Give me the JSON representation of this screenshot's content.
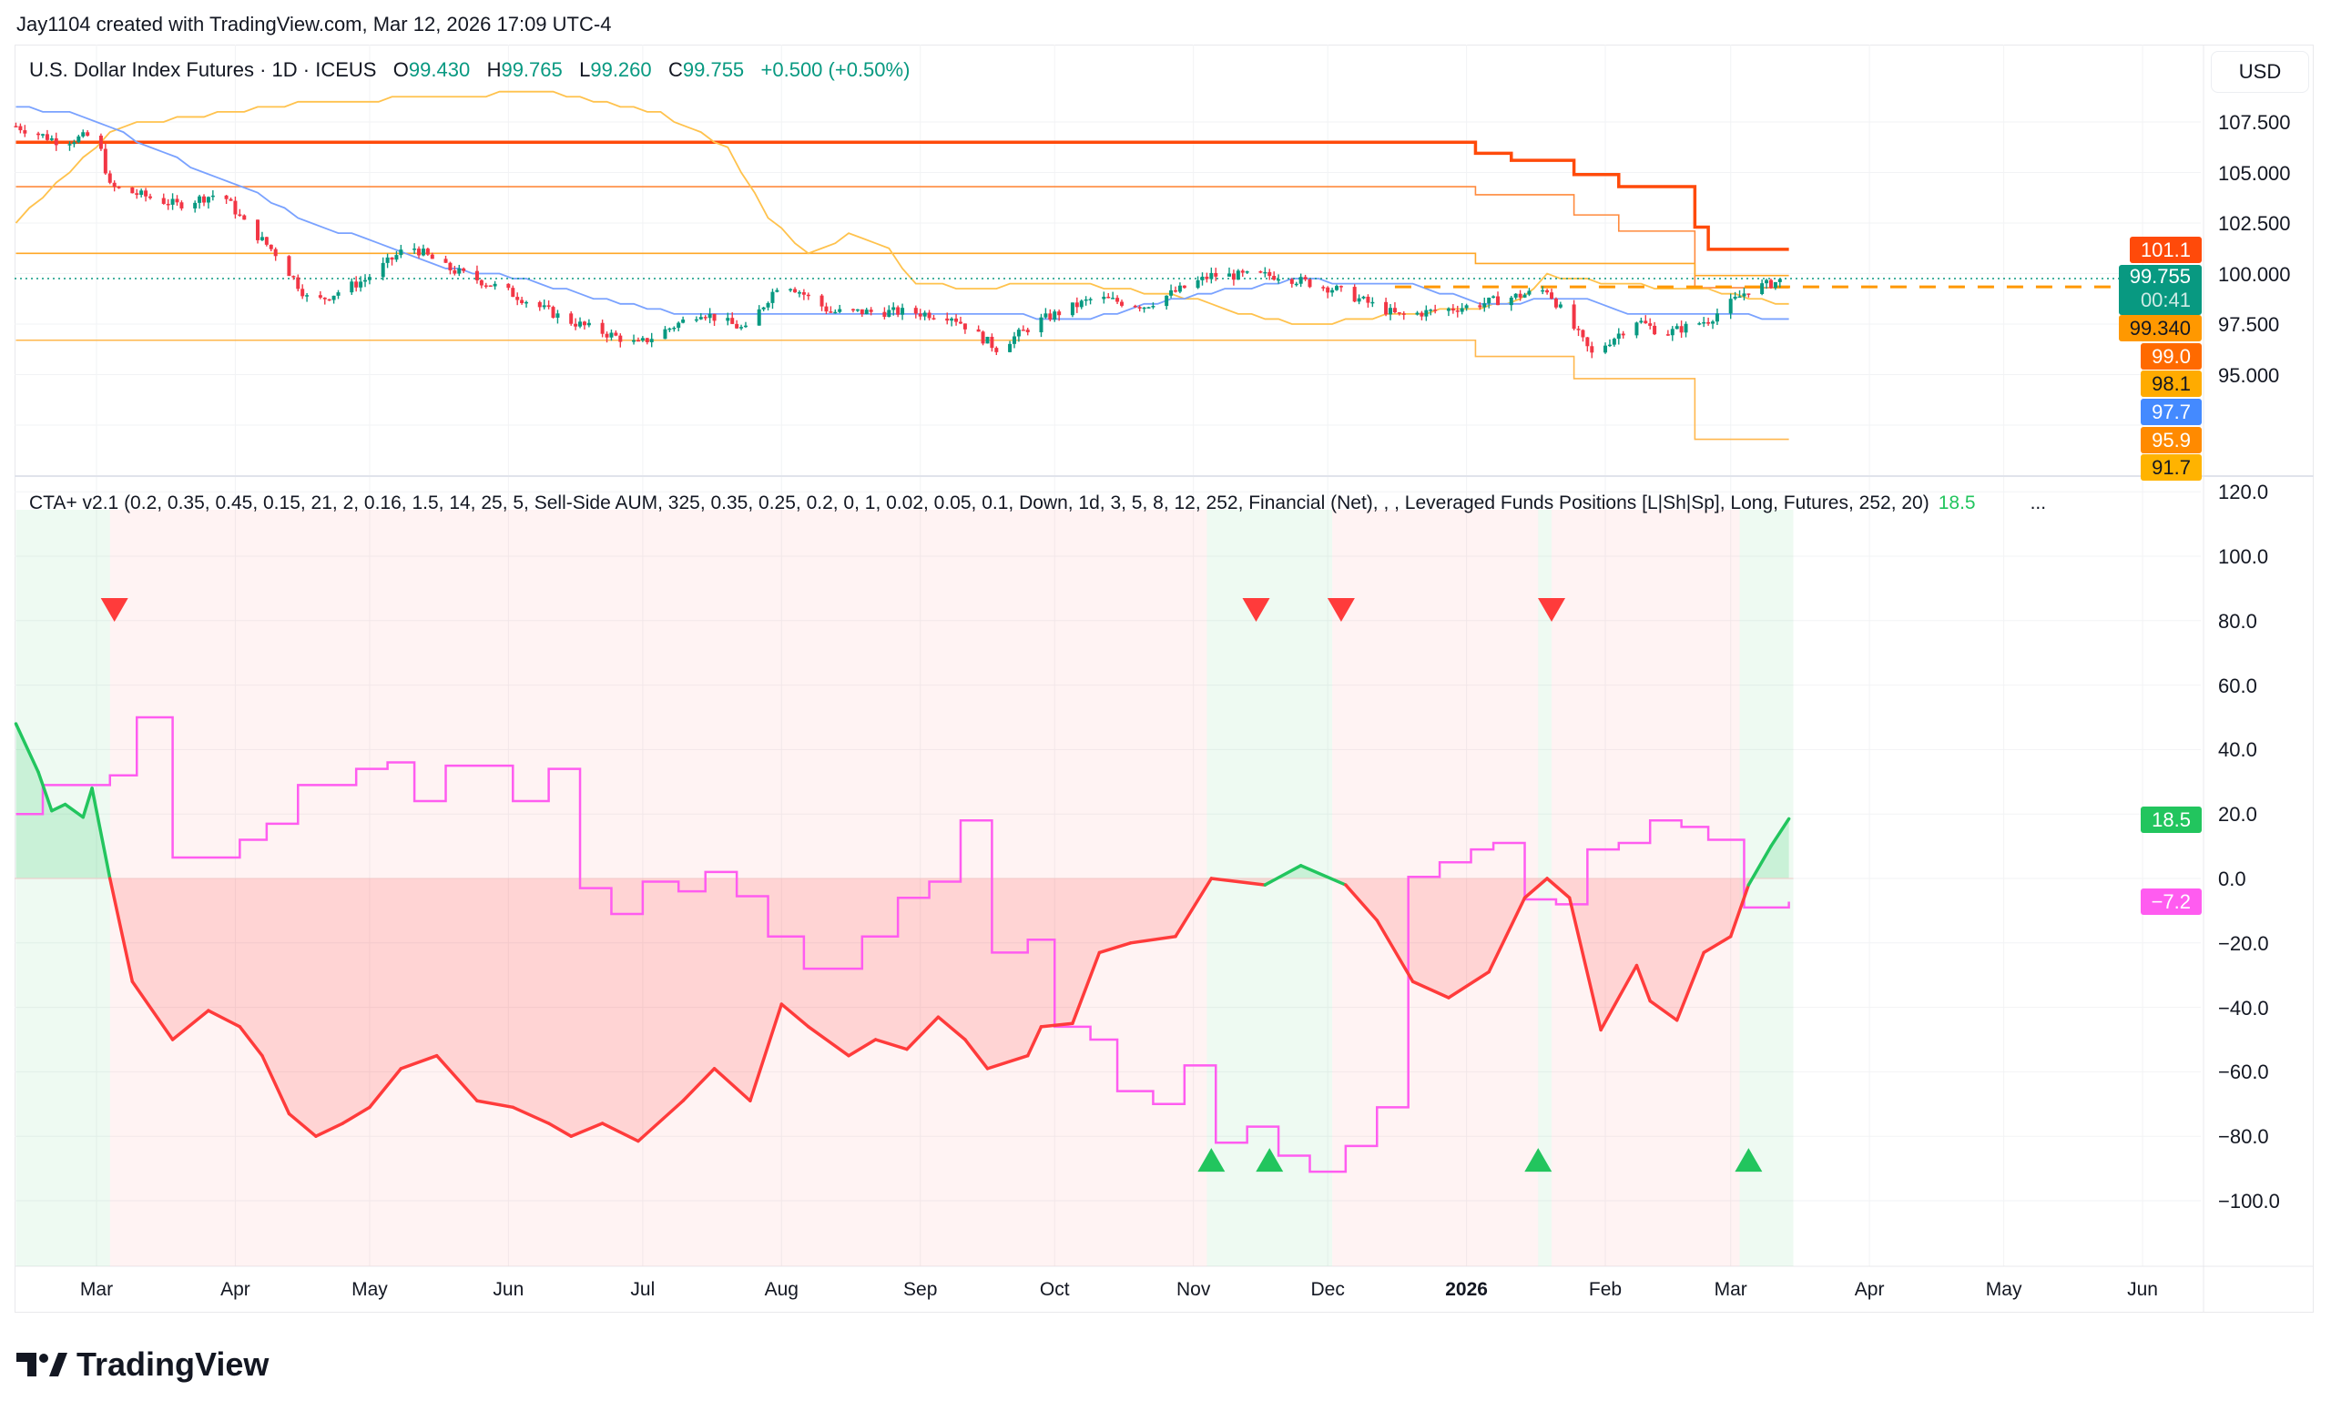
{
  "header": {
    "credit": "Jay1104 created with TradingView.com, Mar 12, 2026 17:09 UTC-4"
  },
  "symbol": {
    "name": "U.S. Dollar Index Futures · 1D · ICEUS",
    "o_label": "O",
    "o": "99.430",
    "h_label": "H",
    "h": "99.765",
    "l_label": "L",
    "l": "99.260",
    "c_label": "C",
    "c": "99.755",
    "change": "+0.500 (+0.50%)"
  },
  "indicator": {
    "legend": "CTA+ v2.1 (0.2, 0.35, 0.45, 0.15, 21, 2, 0.16, 1.5, 14, 25, 5, Sell-Side AUM, 325, 0.35, 0.25, 0.2, 0, 1, 0.02, 0.05, 0.1, Down, 1d, 3, 5, 8, 12, 252, Financial (Net), , , Leveraged Funds Positions [L|Sh|Sp], Long, Futures, 252, 20)",
    "value": "18.5",
    "more": "..."
  },
  "currency": "USD",
  "price_axis": [
    "107.500",
    "105.000",
    "102.500",
    "100.000",
    "97.500",
    "95.000"
  ],
  "price_labels": [
    {
      "text": "101.1",
      "bg": "#ff4a0a",
      "fg": "#ffffff"
    },
    {
      "text": "99.755",
      "sub": "00:41",
      "bg": "#089981",
      "fg": "#ffffff"
    },
    {
      "text": "99.340",
      "bg": "#ff9800",
      "fg": "#131722"
    },
    {
      "text": "99.0",
      "bg": "#ff6a00",
      "fg": "#ffffff"
    },
    {
      "text": "98.1",
      "bg": "#ffab00",
      "fg": "#131722"
    },
    {
      "text": "97.7",
      "bg": "#448aff",
      "fg": "#ffffff"
    },
    {
      "text": "95.9",
      "bg": "#ff8a00",
      "fg": "#ffffff"
    },
    {
      "text": "91.7",
      "bg": "#ffb300",
      "fg": "#131722"
    }
  ],
  "indicator_axis": [
    "120.0",
    "100.0",
    "80.0",
    "60.0",
    "40.0",
    "20.0",
    "0.0",
    "−20.0",
    "−40.0",
    "−60.0",
    "−80.0",
    "−100.0"
  ],
  "indicator_labels": [
    {
      "text": "18.5",
      "value": 18.5,
      "bg": "#22c55e"
    },
    {
      "text": "−7.2",
      "value": -7.2,
      "bg": "#ff5cf0"
    }
  ],
  "time_axis": [
    {
      "label": "Mar",
      "d": 0
    },
    {
      "label": "Apr",
      "d": 31
    },
    {
      "label": "May",
      "d": 61
    },
    {
      "label": "Jun",
      "d": 92
    },
    {
      "label": "Jul",
      "d": 122
    },
    {
      "label": "Aug",
      "d": 153
    },
    {
      "label": "Sep",
      "d": 184
    },
    {
      "label": "Oct",
      "d": 214
    },
    {
      "label": "Nov",
      "d": 245
    },
    {
      "label": "Dec",
      "d": 275
    },
    {
      "label": "2026",
      "d": 306,
      "bold": true
    },
    {
      "label": "Feb",
      "d": 337
    },
    {
      "label": "Mar",
      "d": 365
    },
    {
      "label": "Apr",
      "d": 396
    },
    {
      "label": "May",
      "d": 426
    },
    {
      "label": "Jun",
      "d": 457
    }
  ],
  "brand": "TradingView",
  "chart_data": [
    {
      "type": "candlestick",
      "title": "U.S. Dollar Index Futures · 1D · ICEUS",
      "x_unit": "days since 2025-03-01",
      "ylim": [
        90.5,
        110.5
      ],
      "last_price": 99.755,
      "closes": [
        [
          -18,
          107.3
        ],
        [
          -8,
          106.5
        ],
        [
          0,
          106.9
        ],
        [
          3,
          104.3
        ],
        [
          18,
          103.4
        ],
        [
          28,
          104.0
        ],
        [
          33,
          102.5
        ],
        [
          40,
          101.0
        ],
        [
          48,
          98.5
        ],
        [
          60,
          99.7
        ],
        [
          70,
          101.4
        ],
        [
          78,
          100.3
        ],
        [
          91,
          99.2
        ],
        [
          105,
          97.7
        ],
        [
          121,
          96.5
        ],
        [
          135,
          98.1
        ],
        [
          145,
          97.2
        ],
        [
          153,
          99.7
        ],
        [
          164,
          98.1
        ],
        [
          181,
          98.1
        ],
        [
          191,
          97.9
        ],
        [
          201,
          96.3
        ],
        [
          211,
          97.7
        ],
        [
          223,
          98.8
        ],
        [
          234,
          98.4
        ],
        [
          249,
          99.9
        ],
        [
          264,
          99.9
        ],
        [
          277,
          99.2
        ],
        [
          291,
          97.9
        ],
        [
          307,
          98.4
        ],
        [
          324,
          99.2
        ],
        [
          334,
          96.0
        ],
        [
          344,
          97.7
        ],
        [
          350,
          97.0
        ],
        [
          360,
          97.7
        ],
        [
          369,
          99.2
        ],
        [
          378,
          99.755
        ]
      ],
      "step_levels": [
        {
          "name": "level-red",
          "color": "#ff4a0a",
          "width": 3.5,
          "steps": [
            [
              -18,
              106.5
            ],
            [
              308,
              105.95
            ],
            [
              316,
              105.6
            ],
            [
              330,
              104.9
            ],
            [
              340,
              104.3
            ],
            [
              357,
              102.3
            ],
            [
              360,
              101.2
            ]
          ]
        },
        {
          "name": "level-orange-1",
          "color": "#ff8a3d",
          "width": 1.6,
          "steps": [
            [
              -18,
              104.3
            ],
            [
              308,
              103.9
            ],
            [
              330,
              102.9
            ],
            [
              340,
              102.1
            ],
            [
              357,
              99.3
            ]
          ]
        },
        {
          "name": "level-orange-2",
          "color": "#ffa726",
          "width": 1.6,
          "steps": [
            [
              -18,
              101.0
            ],
            [
              308,
              100.5
            ],
            [
              357,
              99.9
            ]
          ]
        },
        {
          "name": "level-orange-low",
          "color": "#ffb74d",
          "width": 1.6,
          "steps": [
            [
              -18,
              96.7
            ],
            [
              308,
              95.9
            ],
            [
              330,
              94.8
            ],
            [
              357,
              91.8
            ]
          ]
        }
      ],
      "lines": [
        {
          "name": "yellow-band",
          "color": "#ffc24d",
          "points": [
            [
              -18,
              102.5
            ],
            [
              5,
              107.3
            ],
            [
              45,
              108.4
            ],
            [
              101,
              109.0
            ],
            [
              125,
              108.0
            ],
            [
              141,
              106.2
            ],
            [
              151,
              102.5
            ],
            [
              159,
              101.0
            ],
            [
              168,
              101.9
            ],
            [
              176,
              101.4
            ],
            [
              183,
              99.6
            ],
            [
              194,
              99.2
            ],
            [
              211,
              99.6
            ],
            [
              231,
              99.2
            ],
            [
              244,
              98.8
            ],
            [
              261,
              97.7
            ],
            [
              271,
              97.5
            ],
            [
              297,
              98.1
            ],
            [
              317,
              98.5
            ],
            [
              324,
              99.9
            ],
            [
              344,
              99.4
            ],
            [
              360,
              99.2
            ],
            [
              378,
              98.5
            ]
          ]
        },
        {
          "name": "blue-average",
          "color": "#7aa2ff",
          "points": [
            [
              -18,
              108.2
            ],
            [
              -2,
              107.8
            ],
            [
              12,
              106.2
            ],
            [
              35,
              104.0
            ],
            [
              48,
              102.5
            ],
            [
              65,
              101.4
            ],
            [
              78,
              100.3
            ],
            [
              98,
              99.6
            ],
            [
              111,
              98.8
            ],
            [
              128,
              98.1
            ],
            [
              161,
              98.1
            ],
            [
              194,
              98.1
            ],
            [
              218,
              97.7
            ],
            [
              244,
              98.8
            ],
            [
              266,
              99.7
            ],
            [
              294,
              99.4
            ],
            [
              311,
              98.5
            ],
            [
              331,
              98.8
            ],
            [
              344,
              97.9
            ],
            [
              360,
              98.1
            ],
            [
              378,
              97.7
            ]
          ]
        }
      ],
      "dashed_level": {
        "value": 99.34,
        "color": "#ff9800"
      }
    },
    {
      "type": "line",
      "title": "CTA+ v2.1",
      "x_unit": "days since 2025-03-01",
      "ylim": [
        -120,
        125
      ],
      "zero_line": 0,
      "cta_line": [
        [
          -18,
          48
        ],
        [
          -13,
          33
        ],
        [
          -10,
          21
        ],
        [
          -7,
          23
        ],
        [
          -3,
          19
        ],
        [
          -1,
          28
        ],
        [
          3,
          0
        ],
        [
          8,
          -32
        ],
        [
          17,
          -50
        ],
        [
          25,
          -41
        ],
        [
          32,
          -46
        ],
        [
          37,
          -55
        ],
        [
          43,
          -73
        ],
        [
          49,
          -80
        ],
        [
          55,
          -76
        ],
        [
          61,
          -71
        ],
        [
          68,
          -59
        ],
        [
          76,
          -55
        ],
        [
          85,
          -69
        ],
        [
          93,
          -71
        ],
        [
          101,
          -76
        ],
        [
          106,
          -80
        ],
        [
          113,
          -76
        ],
        [
          121,
          -81.5
        ],
        [
          131,
          -69
        ],
        [
          138,
          -59
        ],
        [
          146,
          -69
        ],
        [
          153,
          -39
        ],
        [
          159,
          -46
        ],
        [
          168,
          -55
        ],
        [
          174,
          -50
        ],
        [
          181,
          -53
        ],
        [
          188,
          -43
        ],
        [
          194,
          -50
        ],
        [
          199,
          -59
        ],
        [
          208,
          -55
        ],
        [
          211,
          -46
        ],
        [
          218,
          -45
        ],
        [
          224,
          -23
        ],
        [
          231,
          -20
        ],
        [
          241,
          -18
        ],
        [
          249,
          0
        ],
        [
          261,
          -2
        ],
        [
          269,
          4
        ],
        [
          279,
          -2
        ],
        [
          286,
          -13
        ],
        [
          294,
          -32
        ],
        [
          302,
          -37
        ],
        [
          311,
          -29
        ],
        [
          319,
          -6
        ],
        [
          324,
          0
        ],
        [
          329,
          -6
        ],
        [
          336,
          -47
        ],
        [
          344,
          -27
        ],
        [
          347,
          -38
        ],
        [
          353,
          -44
        ],
        [
          359,
          -23
        ],
        [
          365,
          -18
        ],
        [
          369,
          -2
        ],
        [
          374,
          10
        ],
        [
          378,
          18.5
        ]
      ],
      "positioning_steps": [
        [
          -18,
          20
        ],
        [
          -12,
          29
        ],
        [
          3,
          32
        ],
        [
          9,
          50
        ],
        [
          17,
          6.5
        ],
        [
          32,
          12
        ],
        [
          38,
          17
        ],
        [
          45,
          29
        ],
        [
          58,
          34
        ],
        [
          65,
          36
        ],
        [
          71,
          24
        ],
        [
          78,
          35
        ],
        [
          93,
          24
        ],
        [
          101,
          34
        ],
        [
          108,
          -3
        ],
        [
          115,
          -11
        ],
        [
          122,
          -1
        ],
        [
          130,
          -4
        ],
        [
          136,
          2
        ],
        [
          143,
          -5.5
        ],
        [
          150,
          -18
        ],
        [
          158,
          -28
        ],
        [
          171,
          -18
        ],
        [
          179,
          -6
        ],
        [
          186,
          -1
        ],
        [
          193,
          18
        ],
        [
          200,
          -23
        ],
        [
          208,
          -19
        ],
        [
          214,
          -46
        ],
        [
          222,
          -50
        ],
        [
          228,
          -66
        ],
        [
          236,
          -70
        ],
        [
          243,
          -58
        ],
        [
          250,
          -82
        ],
        [
          257,
          -77
        ],
        [
          264,
          -86
        ],
        [
          271,
          -91
        ],
        [
          279,
          -83
        ],
        [
          286,
          -71
        ],
        [
          293,
          0.5
        ],
        [
          300,
          5
        ],
        [
          307,
          9
        ],
        [
          312,
          11
        ],
        [
          319,
          -6.5
        ],
        [
          326,
          -8
        ],
        [
          333,
          9
        ],
        [
          340,
          11
        ],
        [
          347,
          18
        ],
        [
          354,
          16
        ],
        [
          360,
          12
        ],
        [
          368,
          -9
        ],
        [
          378,
          -7.2
        ]
      ],
      "regimes": [
        {
          "from": -18,
          "to": 3,
          "state": "long"
        },
        {
          "from": 3,
          "to": 248,
          "state": "short"
        },
        {
          "from": 248,
          "to": 276,
          "state": "long"
        },
        {
          "from": 276,
          "to": 322,
          "state": "short"
        },
        {
          "from": 322,
          "to": 325,
          "state": "long"
        },
        {
          "from": 325,
          "to": 367,
          "state": "short"
        },
        {
          "from": 367,
          "to": 379,
          "state": "long"
        }
      ],
      "sell_signals": [
        4,
        259,
        278,
        325
      ],
      "buy_signals": [
        249,
        262,
        322,
        369
      ],
      "colors": {
        "positive": "#22c55e",
        "negative": "#ff3b3b",
        "positioning": "#ff5cf0"
      }
    }
  ]
}
